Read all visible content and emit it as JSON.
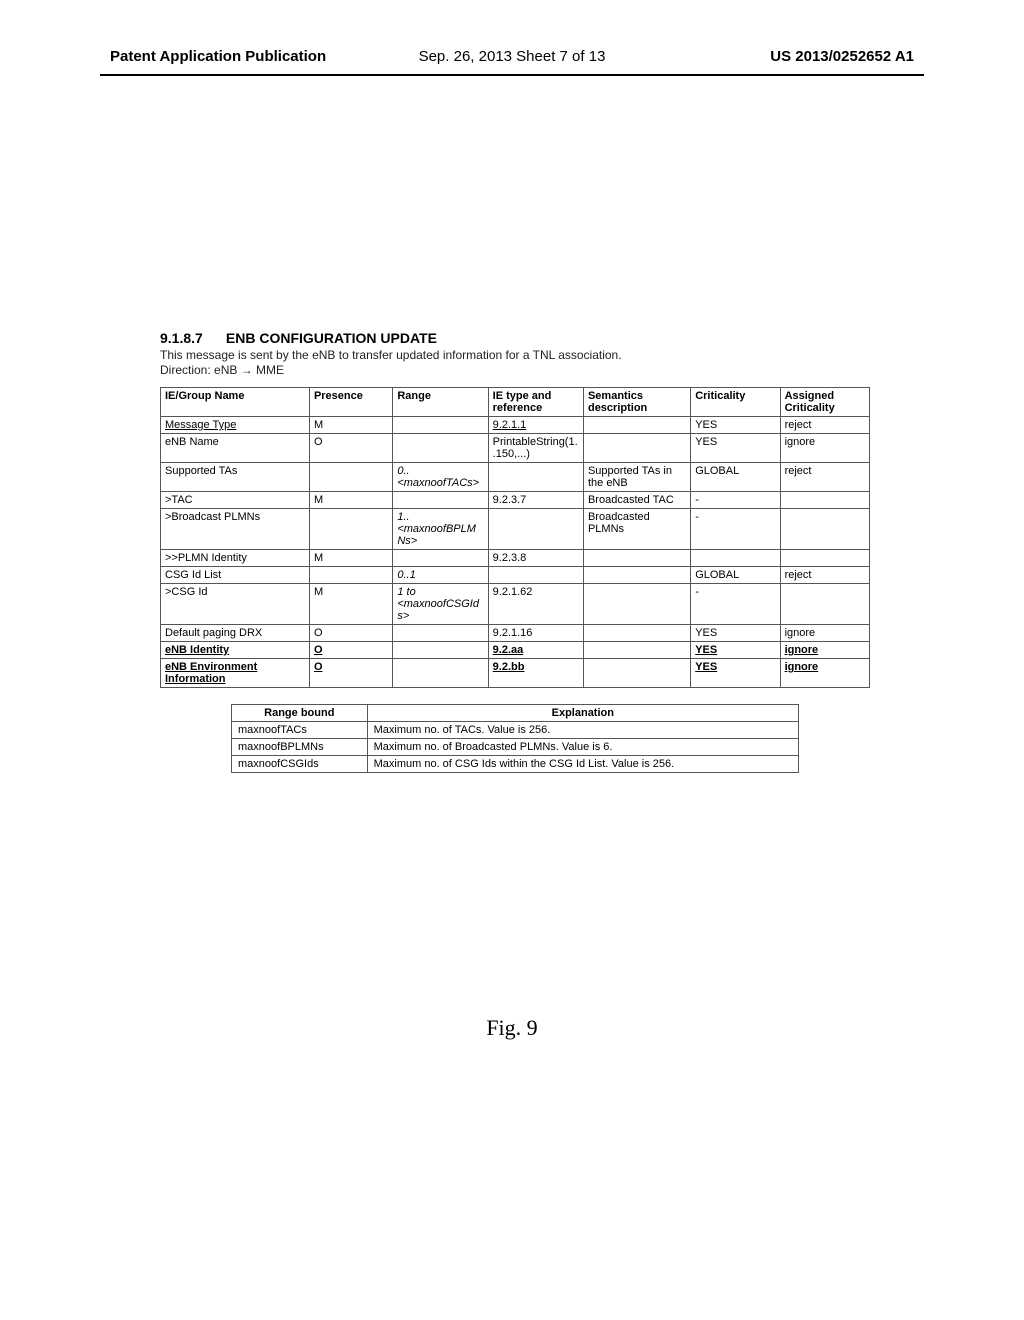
{
  "header": {
    "left": "Patent Application Publication",
    "center": "Sep. 26, 2013  Sheet 7 of 13",
    "right": "US 2013/0252652 A1"
  },
  "section": {
    "number": "9.1.8.7",
    "title": "ENB CONFIGURATION UPDATE",
    "intro": "This message is sent by the eNB to transfer updated information for a TNL association.",
    "direction": "Direction: eNB → MME"
  },
  "main_table": {
    "headers": [
      "IE/Group Name",
      "Presence",
      "Range",
      "IE type and reference",
      "Semantics description",
      "Criticality",
      "Assigned Criticality"
    ],
    "rows": [
      {
        "c": [
          "Message Type",
          "M",
          "",
          "9.2.1.1",
          "",
          "YES",
          "reject"
        ],
        "u": [
          true,
          false,
          false,
          true,
          false,
          false,
          false
        ]
      },
      {
        "c": [
          "eNB Name",
          "O",
          "",
          "PrintableString(1..150,...)",
          "",
          "YES",
          "ignore"
        ]
      },
      {
        "c": [
          "Supported TAs",
          "",
          "0..<maxnoofTACs>",
          "",
          "Supported TAs in the eNB",
          "GLOBAL",
          "reject"
        ],
        "i": [
          false,
          false,
          true,
          false,
          false,
          false,
          false
        ]
      },
      {
        "c": [
          ">TAC",
          "M",
          "",
          "9.2.3.7",
          "Broadcasted TAC",
          "-",
          ""
        ]
      },
      {
        "c": [
          ">Broadcast PLMNs",
          "",
          "1..<maxnoofBPLMNs>",
          "",
          "Broadcasted PLMNs",
          "-",
          ""
        ],
        "i": [
          false,
          false,
          true,
          false,
          false,
          false,
          false
        ]
      },
      {
        "c": [
          ">>PLMN Identity",
          "M",
          "",
          "9.2.3.8",
          "",
          "",
          ""
        ]
      },
      {
        "c": [
          "CSG Id List",
          "",
          "0..1",
          "",
          "",
          "GLOBAL",
          "reject"
        ],
        "i": [
          false,
          false,
          true,
          false,
          false,
          false,
          false
        ]
      },
      {
        "c": [
          ">CSG Id",
          "M",
          "1 to <maxnoofCSGIds>",
          "9.2.1.62",
          "",
          "-",
          ""
        ],
        "i": [
          false,
          false,
          true,
          false,
          false,
          false,
          false
        ]
      },
      {
        "c": [
          "Default paging DRX",
          "O",
          "",
          "9.2.1.16",
          "",
          "YES",
          "ignore"
        ]
      },
      {
        "c": [
          "eNB Identity",
          "O",
          "",
          "9.2.aa",
          "",
          "YES",
          "ignore"
        ],
        "u": [
          true,
          true,
          false,
          true,
          false,
          true,
          true
        ],
        "b": true
      },
      {
        "c": [
          "eNB Environment Information",
          "O",
          "",
          "9.2.bb",
          "",
          "YES",
          "ignore"
        ],
        "u": [
          true,
          true,
          false,
          true,
          false,
          true,
          true
        ],
        "b": true
      }
    ]
  },
  "range_table": {
    "headers": [
      "Range bound",
      "Explanation"
    ],
    "rows": [
      [
        "maxnoofTACs",
        "Maximum no. of TACs. Value is 256."
      ],
      [
        "maxnoofBPLMNs",
        "Maximum no. of Broadcasted PLMNs. Value is 6."
      ],
      [
        "maxnoofCSGIds",
        "Maximum no. of CSG Ids within the CSG Id List. Value is 256."
      ]
    ]
  },
  "figure_caption": "Fig.  9"
}
